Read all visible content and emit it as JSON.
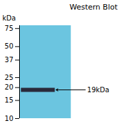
{
  "chart_data": {
    "type": "gel",
    "title": "Western Blot",
    "y_label": "kDa",
    "values": [
      19
    ],
    "color": "#2a2a3a",
    "log": "y",
    "ylim": [
      10,
      80
    ],
    "yticks": [
      10,
      15,
      20,
      25,
      37,
      50,
      75
    ],
    "annotations": [
      {
        "text": "19kDa",
        "y": 19
      }
    ]
  }
}
